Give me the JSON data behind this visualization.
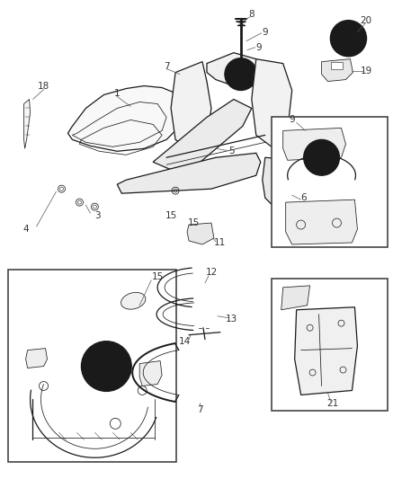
{
  "bg_color": "#ffffff",
  "line_color": "#1a1a1a",
  "label_color": "#333333",
  "figsize": [
    4.37,
    5.33
  ],
  "dpi": 100,
  "label_fs": 7.5,
  "lw_main": 0.9,
  "lw_thin": 0.55,
  "lw_thick": 1.4
}
